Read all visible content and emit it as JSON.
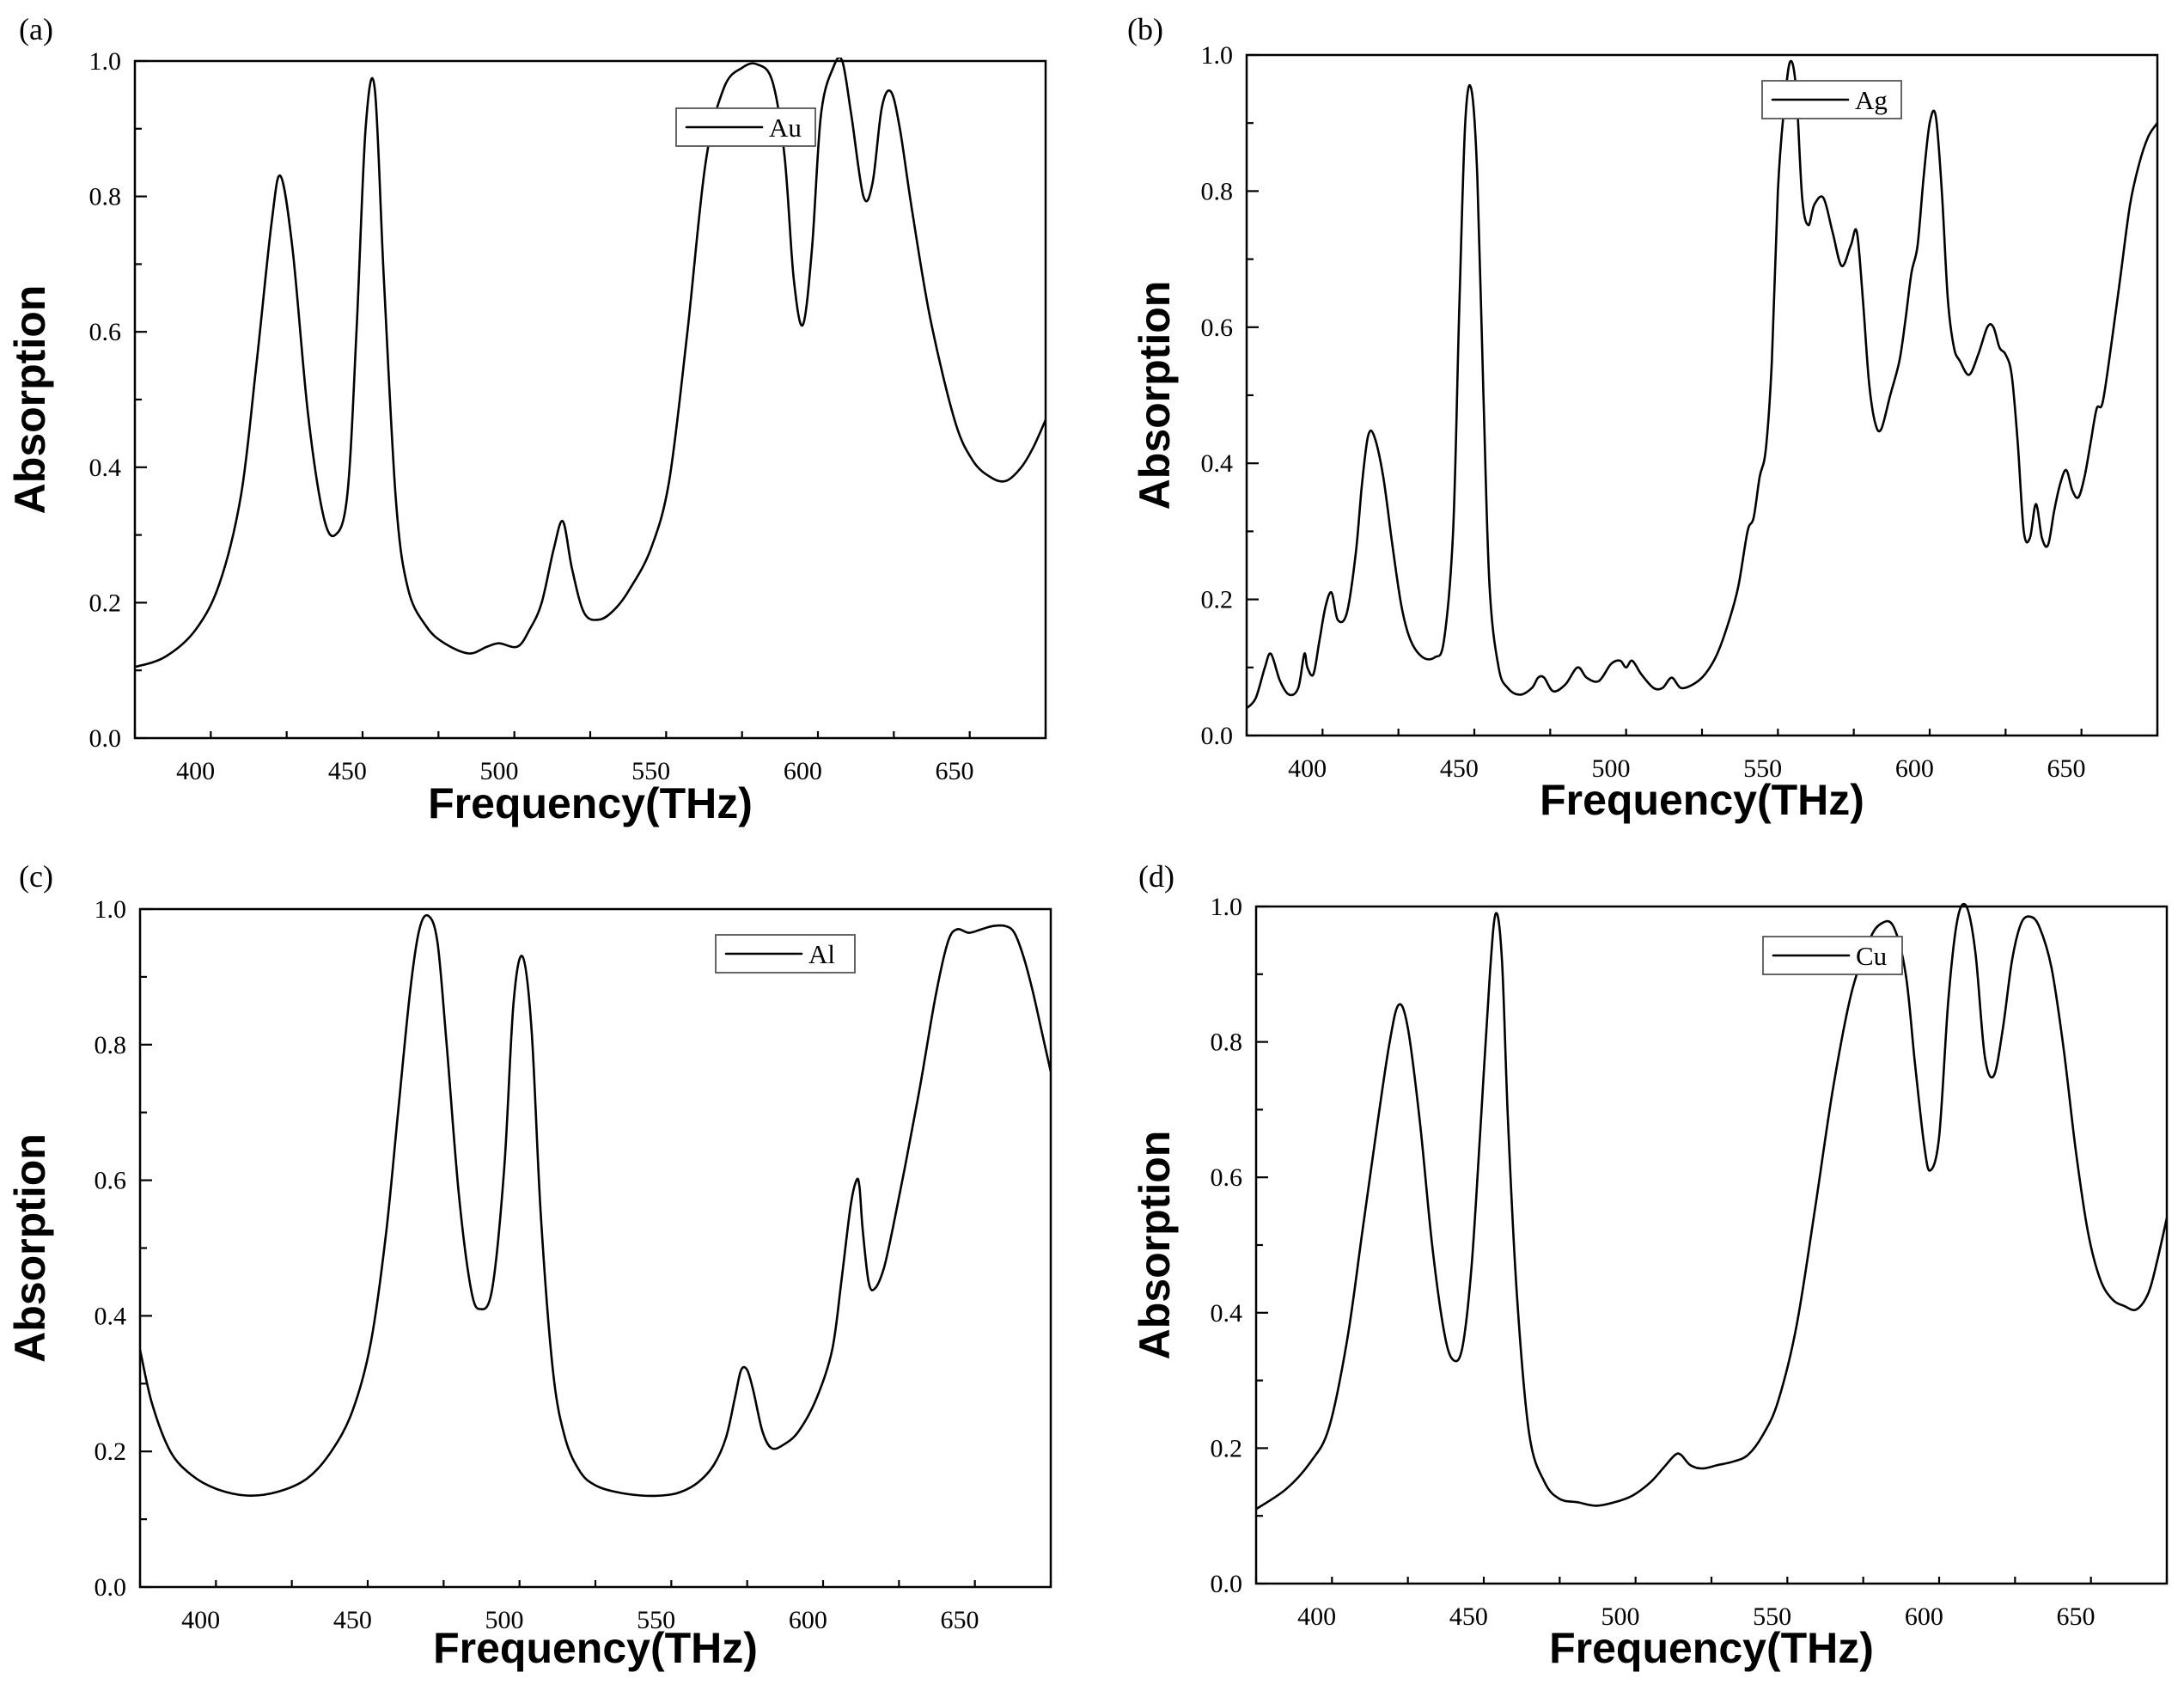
{
  "chart_data": [
    {
      "type": "line",
      "panel_label": "(a)",
      "xlabel": "Frequency(THz)",
      "ylabel": "Absorption",
      "xlim": [
        380,
        680
      ],
      "ylim": [
        0.0,
        1.0
      ],
      "xticks": [
        400,
        450,
        500,
        550,
        600,
        650
      ],
      "yticks": [
        "0.0",
        "0.2",
        "0.4",
        "0.6",
        "0.8",
        "1.0"
      ],
      "legend": "top-center",
      "series": [
        {
          "name": "Au",
          "x": [
            380,
            390,
            400,
            408,
            415,
            420,
            425,
            428,
            432,
            437,
            442,
            446,
            450,
            453,
            456,
            459,
            462,
            466,
            470,
            476,
            482,
            490,
            496,
            500,
            506,
            510,
            514,
            518,
            521,
            524,
            528,
            533,
            538,
            543,
            550,
            556,
            562,
            568,
            574,
            580,
            585,
            590,
            594,
            597,
            600,
            603,
            606,
            610,
            613,
            616,
            620,
            623,
            626,
            629,
            632,
            636,
            642,
            650,
            656,
            662,
            667,
            672,
            676,
            680
          ],
          "y": [
            0.105,
            0.12,
            0.16,
            0.23,
            0.36,
            0.55,
            0.76,
            0.83,
            0.72,
            0.48,
            0.33,
            0.3,
            0.36,
            0.6,
            0.9,
            0.96,
            0.68,
            0.35,
            0.22,
            0.165,
            0.14,
            0.125,
            0.135,
            0.14,
            0.135,
            0.16,
            0.2,
            0.28,
            0.32,
            0.25,
            0.185,
            0.175,
            0.19,
            0.22,
            0.28,
            0.38,
            0.6,
            0.85,
            0.96,
            0.99,
            0.995,
            0.97,
            0.86,
            0.68,
            0.61,
            0.72,
            0.92,
            0.99,
            1.0,
            0.92,
            0.8,
            0.82,
            0.93,
            0.955,
            0.9,
            0.78,
            0.62,
            0.47,
            0.41,
            0.385,
            0.38,
            0.4,
            0.43,
            0.47
          ]
        }
      ]
    },
    {
      "type": "line",
      "panel_label": "(b)",
      "xlabel": "Frequency(THz)",
      "ylabel": "Absorption",
      "xlim": [
        380,
        680
      ],
      "ylim": [
        0.0,
        1.0
      ],
      "xticks": [
        400,
        450,
        500,
        550,
        600,
        650
      ],
      "yticks": [
        "0.0",
        "0.2",
        "0.4",
        "0.6",
        "0.8",
        "1.0"
      ],
      "legend": "top-center",
      "series": [
        {
          "name": "Ag",
          "x": [
            380,
            383,
            386,
            388,
            391,
            394,
            397,
            399,
            400,
            402,
            404,
            406,
            408,
            410,
            413,
            416,
            418,
            420,
            422,
            425,
            428,
            431,
            434,
            438,
            442,
            445,
            448,
            450,
            452,
            454,
            456,
            458,
            460,
            463,
            466,
            470,
            474,
            476,
            478,
            481,
            485,
            489,
            492,
            496,
            500,
            503,
            505,
            507,
            510,
            514,
            517,
            520,
            523,
            527,
            531,
            535,
            539,
            542,
            545,
            547,
            549,
            551,
            553,
            555,
            557,
            559,
            561,
            563,
            565,
            567,
            570,
            573,
            576,
            579,
            581,
            583,
            585,
            587,
            589,
            592,
            595,
            597,
            599,
            601,
            603,
            605,
            607,
            609,
            611,
            613,
            615,
            618,
            621,
            624,
            626,
            628,
            630,
            632,
            634,
            636,
            638,
            640,
            642,
            644,
            646,
            648,
            650,
            652,
            654,
            656,
            658,
            660,
            662,
            665,
            668,
            671,
            674,
            677,
            680
          ],
          "y": [
            0.04,
            0.055,
            0.1,
            0.12,
            0.08,
            0.06,
            0.07,
            0.12,
            0.1,
            0.09,
            0.14,
            0.19,
            0.21,
            0.17,
            0.18,
            0.27,
            0.37,
            0.44,
            0.44,
            0.38,
            0.28,
            0.19,
            0.14,
            0.115,
            0.115,
            0.14,
            0.3,
            0.62,
            0.9,
            0.95,
            0.82,
            0.5,
            0.22,
            0.1,
            0.07,
            0.06,
            0.07,
            0.085,
            0.085,
            0.065,
            0.075,
            0.1,
            0.085,
            0.08,
            0.105,
            0.11,
            0.1,
            0.11,
            0.09,
            0.07,
            0.07,
            0.085,
            0.07,
            0.075,
            0.09,
            0.12,
            0.17,
            0.22,
            0.3,
            0.32,
            0.38,
            0.42,
            0.55,
            0.8,
            0.92,
            0.99,
            0.95,
            0.79,
            0.75,
            0.78,
            0.79,
            0.74,
            0.69,
            0.72,
            0.74,
            0.64,
            0.52,
            0.46,
            0.45,
            0.5,
            0.55,
            0.61,
            0.68,
            0.72,
            0.82,
            0.9,
            0.91,
            0.8,
            0.64,
            0.57,
            0.55,
            0.53,
            0.56,
            0.6,
            0.6,
            0.57,
            0.56,
            0.53,
            0.43,
            0.3,
            0.29,
            0.34,
            0.29,
            0.28,
            0.33,
            0.37,
            0.39,
            0.36,
            0.35,
            0.38,
            0.43,
            0.48,
            0.49,
            0.58,
            0.68,
            0.78,
            0.84,
            0.88,
            0.9
          ]
        }
      ]
    },
    {
      "type": "line",
      "panel_label": "(c)",
      "xlabel": "Frequency(THz)",
      "ylabel": "Absorption",
      "xlim": [
        380,
        680
      ],
      "ylim": [
        0.0,
        1.0
      ],
      "xticks": [
        400,
        450,
        500,
        550,
        600,
        650
      ],
      "yticks": [
        "0.0",
        "0.2",
        "0.4",
        "0.6",
        "0.8",
        "1.0"
      ],
      "legend": "top-right",
      "series": [
        {
          "name": "Al",
          "x": [
            380,
            384,
            390,
            397,
            405,
            415,
            425,
            435,
            443,
            450,
            456,
            461,
            465,
            469,
            472,
            475,
            478,
            481,
            485,
            489,
            492,
            496,
            500,
            503,
            506,
            509,
            512,
            516,
            520,
            525,
            530,
            537,
            545,
            552,
            558,
            564,
            569,
            573,
            576,
            578,
            580,
            582,
            585,
            588,
            592,
            597,
            603,
            608,
            611,
            614,
            616,
            617,
            618,
            620,
            622,
            625,
            628,
            632,
            637,
            642,
            646,
            649,
            653,
            657,
            661,
            665,
            668,
            671,
            674,
            677,
            680
          ],
          "y": [
            0.35,
            0.27,
            0.2,
            0.165,
            0.145,
            0.135,
            0.14,
            0.16,
            0.2,
            0.26,
            0.36,
            0.52,
            0.7,
            0.88,
            0.97,
            0.99,
            0.95,
            0.8,
            0.58,
            0.44,
            0.41,
            0.44,
            0.62,
            0.86,
            0.93,
            0.82,
            0.55,
            0.32,
            0.22,
            0.17,
            0.15,
            0.14,
            0.135,
            0.135,
            0.14,
            0.155,
            0.18,
            0.22,
            0.28,
            0.32,
            0.32,
            0.29,
            0.23,
            0.205,
            0.21,
            0.23,
            0.28,
            0.35,
            0.45,
            0.56,
            0.6,
            0.59,
            0.53,
            0.45,
            0.44,
            0.47,
            0.53,
            0.62,
            0.74,
            0.87,
            0.95,
            0.97,
            0.965,
            0.97,
            0.975,
            0.975,
            0.965,
            0.93,
            0.88,
            0.82,
            0.76
          ]
        }
      ]
    },
    {
      "type": "line",
      "panel_label": "(d)",
      "xlabel": "Frequency(THz)",
      "ylabel": "Absorption",
      "xlim": [
        380,
        680
      ],
      "ylim": [
        0.0,
        1.0
      ],
      "xticks": [
        400,
        450,
        500,
        550,
        600,
        650
      ],
      "yticks": [
        "0.0",
        "0.2",
        "0.4",
        "0.6",
        "0.8",
        "1.0"
      ],
      "legend": "top-center",
      "series": [
        {
          "name": "Cu",
          "x": [
            380,
            390,
            398,
            404,
            410,
            415,
            420,
            424,
            427,
            430,
            434,
            438,
            442,
            445,
            448,
            451,
            454,
            457,
            459,
            461,
            463,
            466,
            470,
            475,
            480,
            486,
            492,
            498,
            504,
            510,
            514,
            518,
            520,
            523,
            527,
            532,
            537,
            542,
            547,
            552,
            558,
            564,
            570,
            576,
            582,
            586,
            590,
            594,
            597,
            600,
            602,
            605,
            608,
            611,
            614,
            617,
            620,
            623,
            626,
            629,
            632,
            635,
            638,
            642,
            646,
            650,
            654,
            658,
            662,
            666,
            670,
            674,
            677,
            680
          ],
          "y": [
            0.11,
            0.14,
            0.18,
            0.23,
            0.36,
            0.52,
            0.68,
            0.8,
            0.855,
            0.82,
            0.68,
            0.5,
            0.37,
            0.33,
            0.35,
            0.47,
            0.68,
            0.9,
            0.99,
            0.92,
            0.68,
            0.42,
            0.22,
            0.15,
            0.125,
            0.12,
            0.115,
            0.12,
            0.13,
            0.15,
            0.17,
            0.19,
            0.19,
            0.175,
            0.17,
            0.175,
            0.18,
            0.19,
            0.22,
            0.27,
            0.38,
            0.55,
            0.73,
            0.87,
            0.95,
            0.975,
            0.97,
            0.9,
            0.77,
            0.65,
            0.61,
            0.66,
            0.86,
            0.98,
            1.0,
            0.93,
            0.78,
            0.75,
            0.82,
            0.92,
            0.975,
            0.985,
            0.97,
            0.91,
            0.79,
            0.64,
            0.52,
            0.45,
            0.42,
            0.41,
            0.405,
            0.43,
            0.48,
            0.54
          ]
        }
      ]
    }
  ]
}
